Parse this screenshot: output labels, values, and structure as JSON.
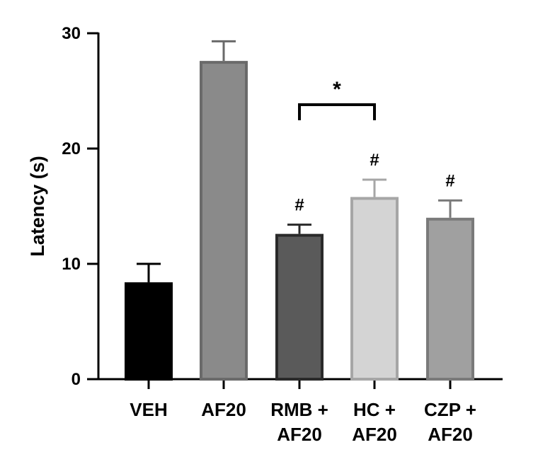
{
  "chart_data": {
    "type": "bar",
    "title": "",
    "xlabel": "",
    "ylabel": "Latency (s)",
    "ylim": [
      0,
      30
    ],
    "yticks": [
      0,
      10,
      20,
      30
    ],
    "bars": [
      {
        "label_lines": [
          "VEH"
        ],
        "value": 8.4,
        "error": 1.6,
        "fill": "#000000",
        "stroke": "#000000",
        "marker": ""
      },
      {
        "label_lines": [
          "AF20"
        ],
        "value": 27.6,
        "error": 1.7,
        "fill": "#8a8a8a",
        "stroke": "#6a6a6a",
        "marker": ""
      },
      {
        "label_lines": [
          "RMB +",
          "AF20"
        ],
        "value": 12.6,
        "error": 0.8,
        "fill": "#5a5a5a",
        "stroke": "#2a2a2a",
        "marker": "#"
      },
      {
        "label_lines": [
          "HC +",
          "AF20"
        ],
        "value": 15.8,
        "error": 1.5,
        "fill": "#d4d4d4",
        "stroke": "#a6a6a6",
        "marker": "#"
      },
      {
        "label_lines": [
          "CZP +",
          "AF20"
        ],
        "value": 14.0,
        "error": 1.5,
        "fill": "#a0a0a0",
        "stroke": "#7a7a7a",
        "marker": "#"
      }
    ],
    "significance": [
      {
        "from": 2,
        "to": 3,
        "label": "*"
      }
    ]
  }
}
